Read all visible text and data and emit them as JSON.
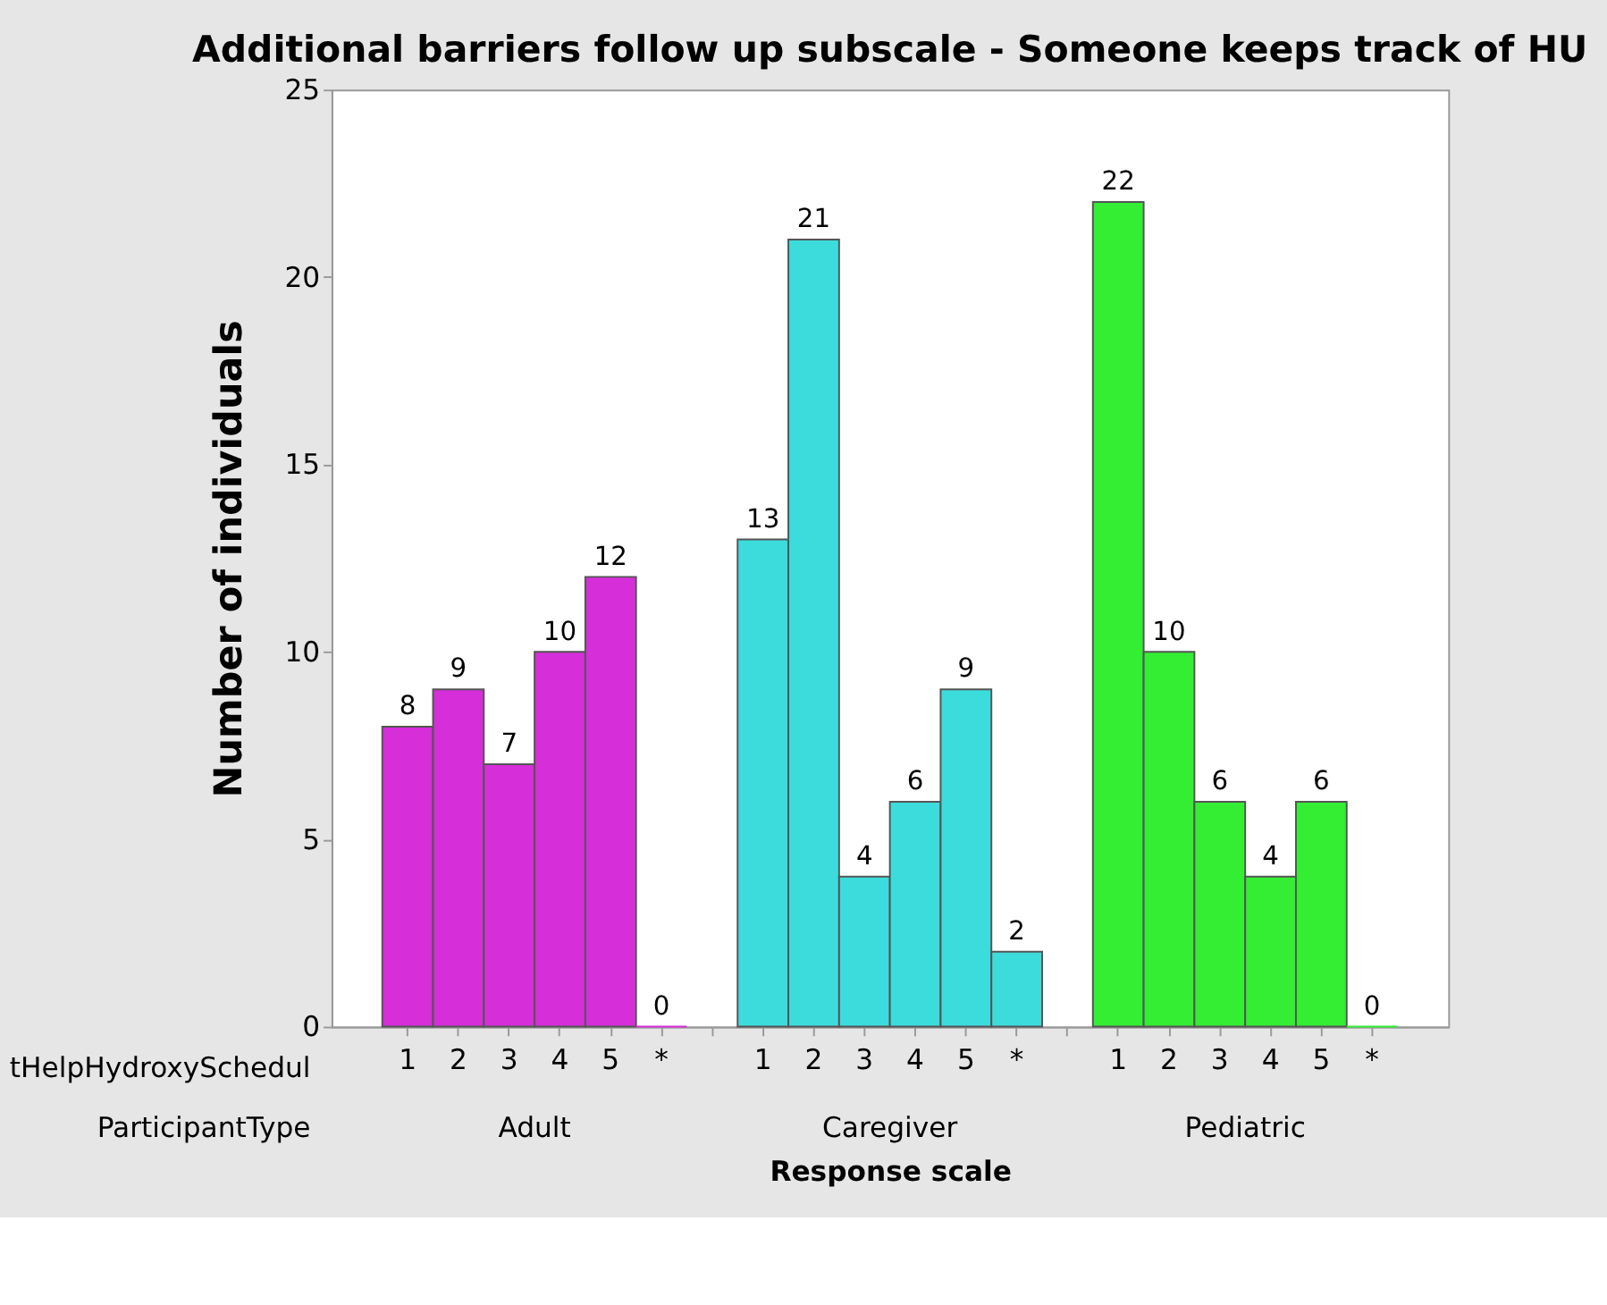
{
  "chart_data": {
    "type": "bar",
    "title": "Additional barriers follow up subscale - Someone keeps track of HU",
    "xlabel": "Response scale",
    "ylabel": "Number of individuals",
    "categories": [
      "1",
      "2",
      "3",
      "4",
      "5",
      "*",
      null,
      "1",
      "2",
      "3",
      "4",
      "5",
      "*",
      null,
      "1",
      "2",
      "3",
      "4",
      "5",
      "*"
    ],
    "values": [
      8,
      9,
      7,
      10,
      12,
      0,
      null,
      13,
      21,
      4,
      6,
      9,
      2,
      null,
      22,
      10,
      6,
      4,
      6,
      0
    ],
    "colors": [
      "#d62ed9",
      "#d62ed9",
      "#d62ed9",
      "#d62ed9",
      "#d62ed9",
      "#d62ed9",
      null,
      "#3cdcdc",
      "#3cdcdc",
      "#3cdcdc",
      "#3cdcdc",
      "#3cdcdc",
      "#3cdcdc",
      null,
      "#33ee33",
      "#33ee33",
      "#33ee33",
      "#33ee33",
      "#33ee33",
      "#33ee33"
    ],
    "annotations": [
      "tHelpHydroxySchedul",
      "ParticipantType",
      "Adult",
      "Caregiver",
      "Pediatric"
    ],
    "ylim": [
      0,
      25
    ],
    "yticks": [
      0,
      5,
      10,
      15,
      20,
      25
    ],
    "grid": false,
    "data_labels": true
  }
}
